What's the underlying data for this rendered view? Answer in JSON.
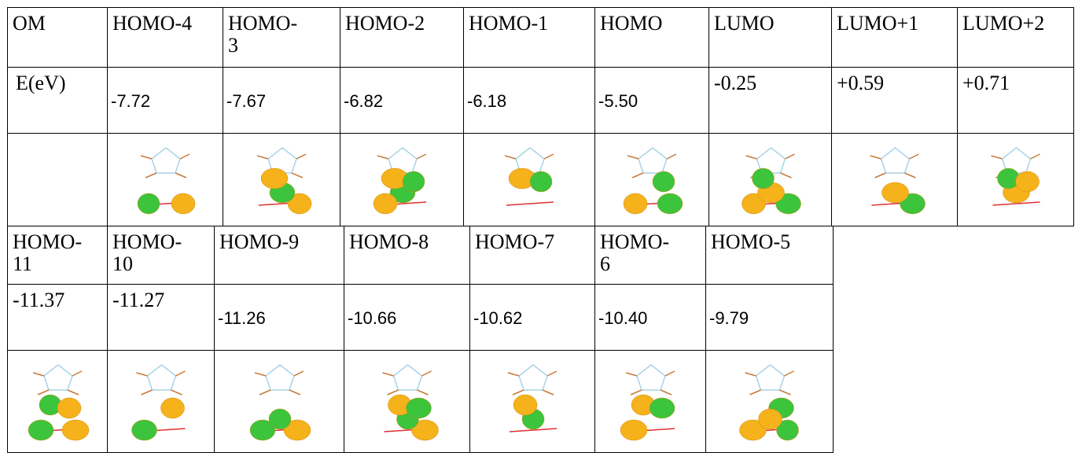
{
  "table1": {
    "rows": [
      [
        "OM",
        "HOMO-4",
        "HOMO-3",
        "HOMO-2",
        "HOMO-1",
        "HOMO",
        "LUMO",
        "LUMO+1",
        "LUMO+2"
      ],
      [
        "E(eV)",
        "-7.72",
        "-7.67",
        "-6.82",
        "-6.18",
        "-5.50",
        "-0.25",
        "+0.59",
        "+0.71"
      ]
    ]
  },
  "table2": {
    "rows": [
      [
        "HOMO-11",
        "HOMO-10",
        "HOMO-9",
        "HOMO-8",
        "HOMO-7",
        "HOMO-6",
        "HOMO-5"
      ],
      [
        "-11.37",
        "-11.27",
        "-11.26",
        "-10.66",
        "-10.62",
        "-10.40",
        "-9.79"
      ]
    ]
  }
}
